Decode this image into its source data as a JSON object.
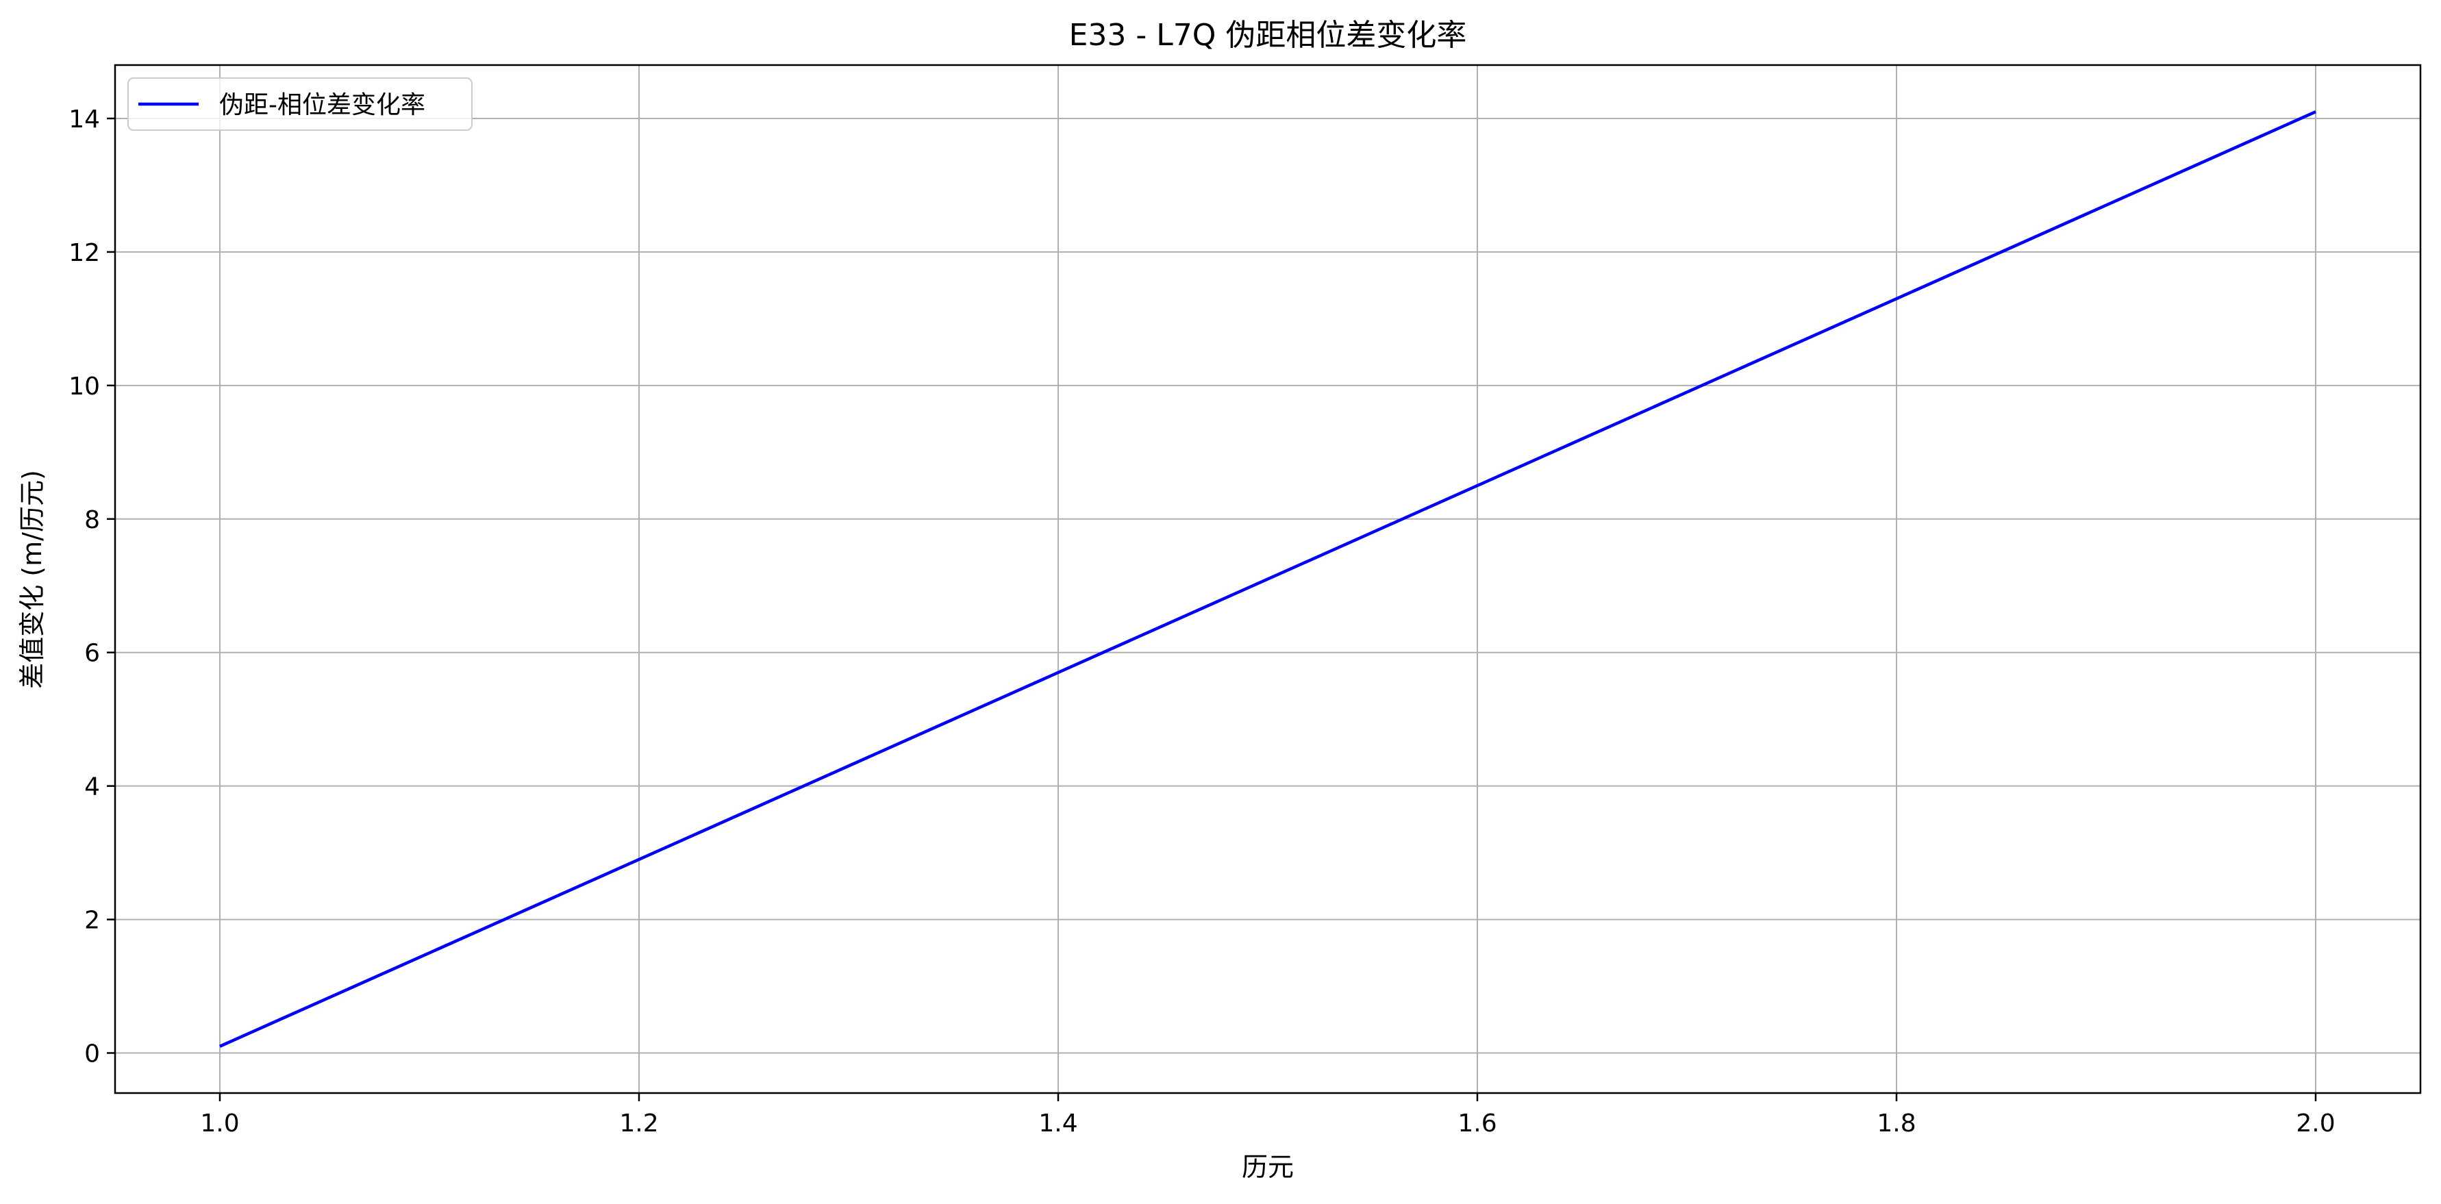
{
  "chart_data": {
    "type": "line",
    "title": "E33 - L7Q 伪距相位差变化率",
    "xlabel": "历元",
    "ylabel": "差值变化 (m/历元)",
    "x": [
      1.0,
      2.0
    ],
    "series": [
      {
        "name": "伪距-相位差变化率",
        "color": "#0000ff",
        "values": [
          0.1,
          14.1
        ]
      }
    ],
    "xlim": [
      0.95,
      2.05
    ],
    "ylim": [
      -0.6,
      14.8
    ],
    "xticks": [
      1.0,
      1.2,
      1.4,
      1.6,
      1.8,
      2.0
    ],
    "xtick_labels": [
      "1.0",
      "1.2",
      "1.4",
      "1.6",
      "1.8",
      "2.0"
    ],
    "yticks": [
      0,
      2,
      4,
      6,
      8,
      10,
      12,
      14
    ],
    "ytick_labels": [
      "0",
      "2",
      "4",
      "6",
      "8",
      "10",
      "12",
      "14"
    ],
    "grid": true,
    "grid_color": "#b0b0b0",
    "legend_position": "upper-left"
  }
}
